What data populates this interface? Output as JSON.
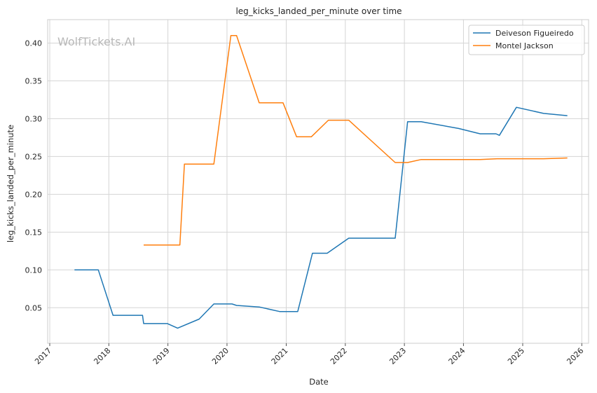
{
  "chart_data": {
    "type": "line",
    "title": "leg_kicks_landed_per_minute over time",
    "xlabel": "Date",
    "ylabel": "leg_kicks_landed_per_minute",
    "watermark": "WolfTickets.AI",
    "x_ticks": [
      "2017",
      "2018",
      "2019",
      "2020",
      "2021",
      "2022",
      "2023",
      "2024",
      "2025",
      "2026"
    ],
    "y_ticks": [
      "0.05",
      "0.10",
      "0.15",
      "0.20",
      "0.25",
      "0.30",
      "0.35",
      "0.40"
    ],
    "xlim": [
      "2016-12-19",
      "2026-02-12"
    ],
    "ylim": [
      0.003,
      0.431
    ],
    "grid": true,
    "legend_position": "top-right",
    "series": [
      {
        "name": "Deiveson Figueiredo",
        "color": "#1f77b4",
        "points": [
          [
            "2017-06-03",
            0.1
          ],
          [
            "2017-10-28",
            0.1
          ],
          [
            "2018-01-27",
            0.04
          ],
          [
            "2018-07-28",
            0.04
          ],
          [
            "2018-08-04",
            0.029
          ],
          [
            "2018-12-29",
            0.029
          ],
          [
            "2019-03-02",
            0.023
          ],
          [
            "2019-07-13",
            0.035
          ],
          [
            "2019-10-12",
            0.055
          ],
          [
            "2020-02-01",
            0.055
          ],
          [
            "2020-02-29",
            0.053
          ],
          [
            "2020-07-18",
            0.051
          ],
          [
            "2020-11-21",
            0.045
          ],
          [
            "2021-03-13",
            0.045
          ],
          [
            "2021-06-12",
            0.122
          ],
          [
            "2021-09-11",
            0.122
          ],
          [
            "2022-01-22",
            0.142
          ],
          [
            "2022-11-05",
            0.142
          ],
          [
            "2023-01-21",
            0.296
          ],
          [
            "2023-04-15",
            0.296
          ],
          [
            "2023-12-02",
            0.287
          ],
          [
            "2024-04-13",
            0.28
          ],
          [
            "2024-07-20",
            0.28
          ],
          [
            "2024-08-10",
            0.278
          ],
          [
            "2024-11-23",
            0.315
          ],
          [
            "2025-05-10",
            0.307
          ],
          [
            "2025-10-04",
            0.304
          ]
        ]
      },
      {
        "name": "Montel Jackson",
        "color": "#ff7f0e",
        "points": [
          [
            "2018-08-04",
            0.133
          ],
          [
            "2019-03-16",
            0.133
          ],
          [
            "2019-04-13",
            0.24
          ],
          [
            "2019-10-12",
            0.24
          ],
          [
            "2020-01-25",
            0.41
          ],
          [
            "2020-02-29",
            0.41
          ],
          [
            "2020-07-18",
            0.321
          ],
          [
            "2020-12-12",
            0.321
          ],
          [
            "2021-03-06",
            0.276
          ],
          [
            "2021-06-05",
            0.276
          ],
          [
            "2021-09-18",
            0.298
          ],
          [
            "2022-01-22",
            0.298
          ],
          [
            "2022-11-05",
            0.242
          ],
          [
            "2023-01-21",
            0.242
          ],
          [
            "2023-04-15",
            0.246
          ],
          [
            "2024-04-13",
            0.246
          ],
          [
            "2024-07-27",
            0.247
          ],
          [
            "2025-05-10",
            0.247
          ],
          [
            "2025-10-04",
            0.248
          ]
        ]
      }
    ]
  }
}
